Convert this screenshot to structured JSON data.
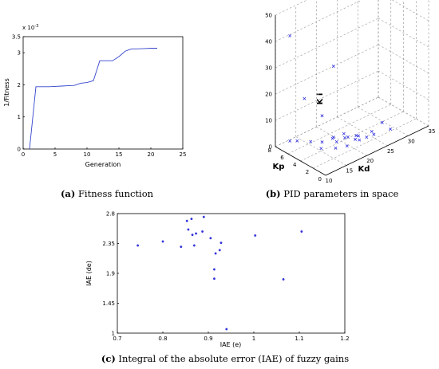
{
  "chart_data": [
    {
      "type": "line",
      "xlabel": "Generation",
      "ylabel": "1/Fitness",
      "y_scale_label": "x 10",
      "y_scale_exp": "-3",
      "xlim": [
        0,
        25
      ],
      "ylim": [
        0,
        3.5
      ],
      "xticks": [
        "0",
        "5",
        "10",
        "15",
        "20",
        "25"
      ],
      "yticks": [
        "0",
        "1",
        "2",
        "3",
        "3.5"
      ],
      "x": [
        1,
        2,
        3,
        4,
        5,
        6,
        7,
        8,
        9,
        10,
        11,
        12,
        13,
        14,
        15,
        16,
        17,
        18,
        19,
        20,
        21
      ],
      "y": [
        0,
        1.94,
        1.94,
        1.94,
        1.95,
        1.96,
        1.97,
        1.98,
        2.05,
        2.07,
        2.13,
        2.75,
        2.75,
        2.75,
        2.88,
        3.05,
        3.12,
        3.12,
        3.13,
        3.14,
        3.14
      ],
      "caption_bold": "(a)",
      "caption_text": " Fitness function"
    },
    {
      "type": "scatter",
      "xlabel": "Kd",
      "ylabel": "Kp",
      "zlabel": "K i",
      "xticks": [
        "10",
        "15",
        "20",
        "25",
        "30",
        "35"
      ],
      "yticks": [
        "0",
        "2",
        "4",
        "6",
        "8"
      ],
      "zticks": [
        "0",
        "10",
        "20",
        "30",
        "40",
        "50"
      ],
      "xlim": [
        10,
        35
      ],
      "ylim": [
        0,
        8
      ],
      "zlim": [
        0,
        50
      ],
      "points": [
        {
          "x": 12,
          "y": 7,
          "z": 2
        },
        {
          "x": 13,
          "y": 6.5,
          "z": 2
        },
        {
          "x": 14,
          "y": 5,
          "z": 3
        },
        {
          "x": 15,
          "y": 4,
          "z": 1
        },
        {
          "x": 16,
          "y": 4.5,
          "z": 2
        },
        {
          "x": 17,
          "y": 3.5,
          "z": 4
        },
        {
          "x": 17,
          "y": 3,
          "z": 1
        },
        {
          "x": 18,
          "y": 4,
          "z": 3
        },
        {
          "x": 18,
          "y": 3.5,
          "z": 2
        },
        {
          "x": 19,
          "y": 3,
          "z": 5
        },
        {
          "x": 19,
          "y": 2.5,
          "z": 1
        },
        {
          "x": 20,
          "y": 3.5,
          "z": 2
        },
        {
          "x": 20,
          "y": 3,
          "z": 3
        },
        {
          "x": 21,
          "y": 2.5,
          "z": 2
        },
        {
          "x": 21,
          "y": 2,
          "z": 4
        },
        {
          "x": 22,
          "y": 3,
          "z": 2
        },
        {
          "x": 22,
          "y": 2.5,
          "z": 1
        },
        {
          "x": 23,
          "y": 2,
          "z": 2
        },
        {
          "x": 24,
          "y": 1.5,
          "z": 3
        },
        {
          "x": 25,
          "y": 2.5,
          "z": 2
        },
        {
          "x": 26,
          "y": 1.5,
          "z": 6
        },
        {
          "x": 28,
          "y": 1.5,
          "z": 2
        },
        {
          "x": 16,
          "y": 4.5,
          "z": 12
        },
        {
          "x": 14,
          "y": 6,
          "z": 18
        },
        {
          "x": 18,
          "y": 4,
          "z": 30
        },
        {
          "x": 12,
          "y": 7,
          "z": 42
        }
      ],
      "caption_bold": "(b)",
      "caption_text": " PID parameters in space"
    },
    {
      "type": "scatter",
      "xlabel": "IAE (e)",
      "ylabel": "IAE (de)",
      "xlim": [
        0.7,
        1.2
      ],
      "ylim": [
        1,
        2.8
      ],
      "xticks": [
        "0.7",
        "0.8",
        "0.9",
        "1",
        "1.1",
        "1.2"
      ],
      "yticks": [
        "1",
        "1.45",
        "1.9",
        "2.35",
        "2.8"
      ],
      "x": [
        0.745,
        0.8,
        0.84,
        0.853,
        0.856,
        0.863,
        0.865,
        0.869,
        0.873,
        0.887,
        0.89,
        0.905,
        0.913,
        0.913,
        0.916,
        0.925,
        0.928,
        0.94,
        1.003,
        1.065,
        1.105
      ],
      "y": [
        2.32,
        2.38,
        2.3,
        2.69,
        2.56,
        2.72,
        2.48,
        2.32,
        2.5,
        2.53,
        2.75,
        2.43,
        1.96,
        1.82,
        2.2,
        2.25,
        2.36,
        1.06,
        2.47,
        1.81,
        2.53
      ],
      "caption_bold": "(c)",
      "caption_text": " Integral of the absolute error (IAE) of fuzzy gains"
    }
  ]
}
